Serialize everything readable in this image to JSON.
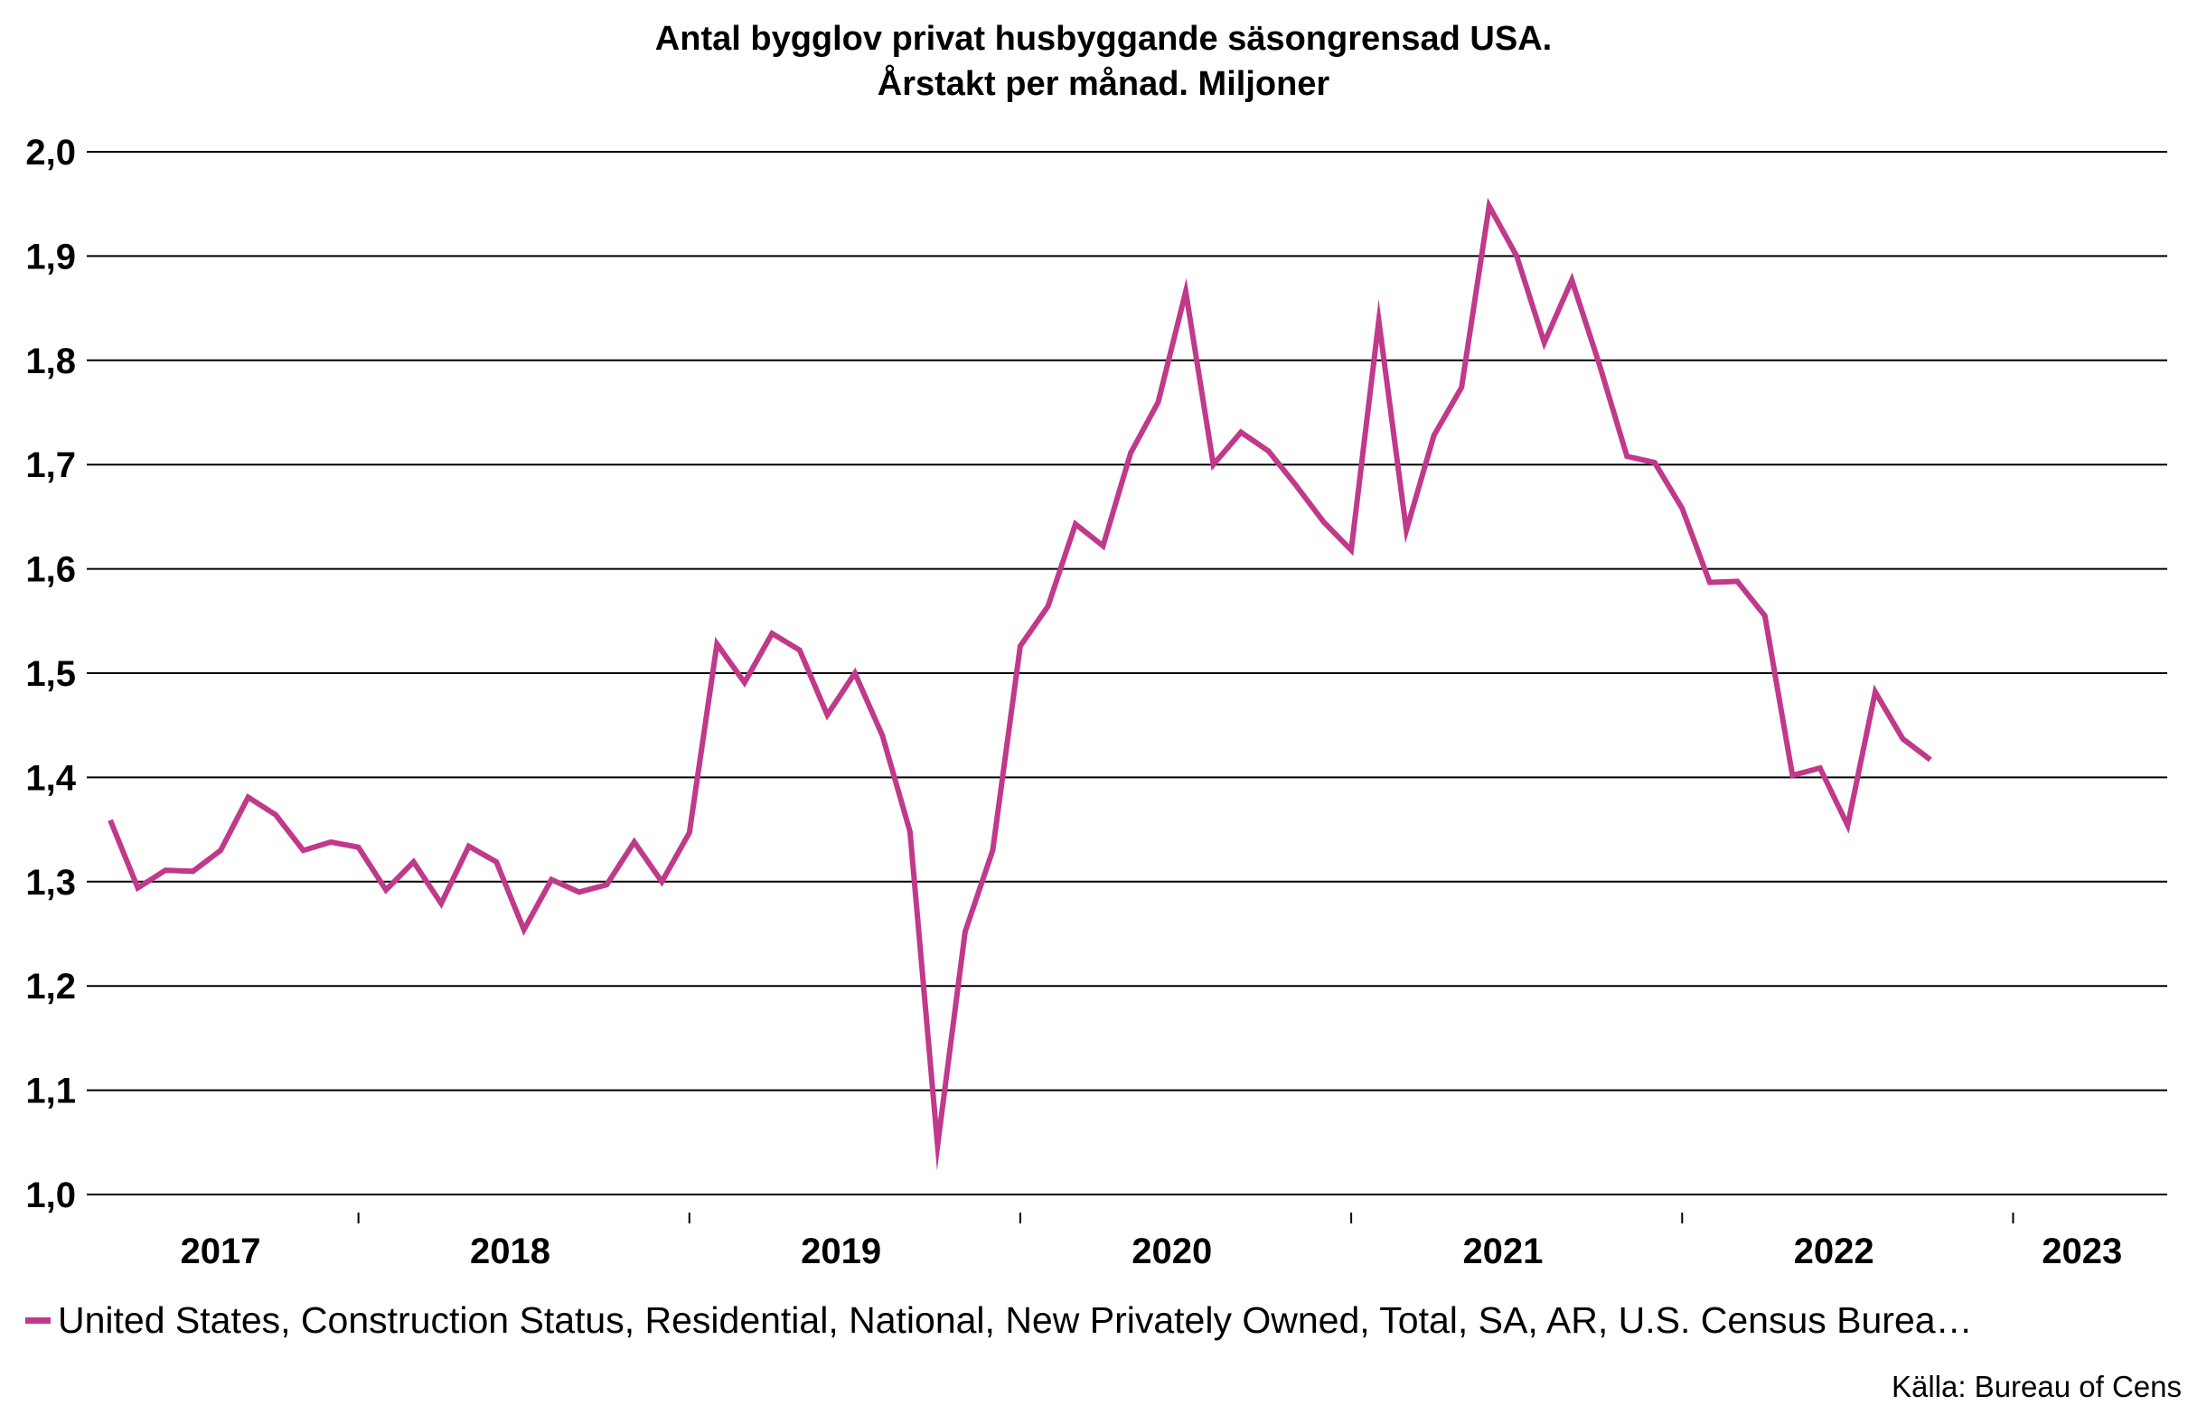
{
  "chart_data": {
    "type": "line",
    "title": "Antal bygglov privat husbyggande säsongrensad USA.",
    "subtitle": "Årstakt per månad. Miljoner",
    "ylim": [
      1.0,
      2.0
    ],
    "yticks": [
      "1,0",
      "1,1",
      "1,2",
      "1,3",
      "1,4",
      "1,5",
      "1,6",
      "1,7",
      "1,8",
      "1,9",
      "2,0"
    ],
    "xtick_labels": [
      "2017",
      "2018",
      "2019",
      "2020",
      "2021",
      "2022",
      "2023"
    ],
    "grid": "horizontal",
    "legend_position": "bottom",
    "x_start": "2017-04",
    "x_end": "2023-06",
    "series": [
      {
        "name": "United States, Construction Status, Residential, National, New Privately Owned, Total, SA, AR, U.S. Census Burea…",
        "color": "#c0398a",
        "values": [
          1.359,
          1.294,
          1.311,
          1.31,
          1.33,
          1.381,
          1.364,
          1.33,
          1.338,
          1.333,
          1.292,
          1.319,
          1.279,
          1.334,
          1.319,
          1.254,
          1.302,
          1.29,
          1.297,
          1.338,
          1.3,
          1.347,
          1.528,
          1.491,
          1.538,
          1.522,
          1.46,
          1.5,
          1.44,
          1.348,
          1.047,
          1.252,
          1.33,
          1.526,
          1.564,
          1.643,
          1.622,
          1.711,
          1.76,
          1.866,
          1.7,
          1.731,
          1.713,
          1.68,
          1.645,
          1.618,
          1.838,
          1.637,
          1.728,
          1.774,
          1.948,
          1.9,
          1.817,
          1.877,
          1.796,
          1.708,
          1.702,
          1.658,
          1.587,
          1.588,
          1.555,
          1.402,
          1.409,
          1.354,
          1.482,
          1.437,
          1.417
        ]
      }
    ]
  },
  "source": "Källa: Bureau of Cens"
}
